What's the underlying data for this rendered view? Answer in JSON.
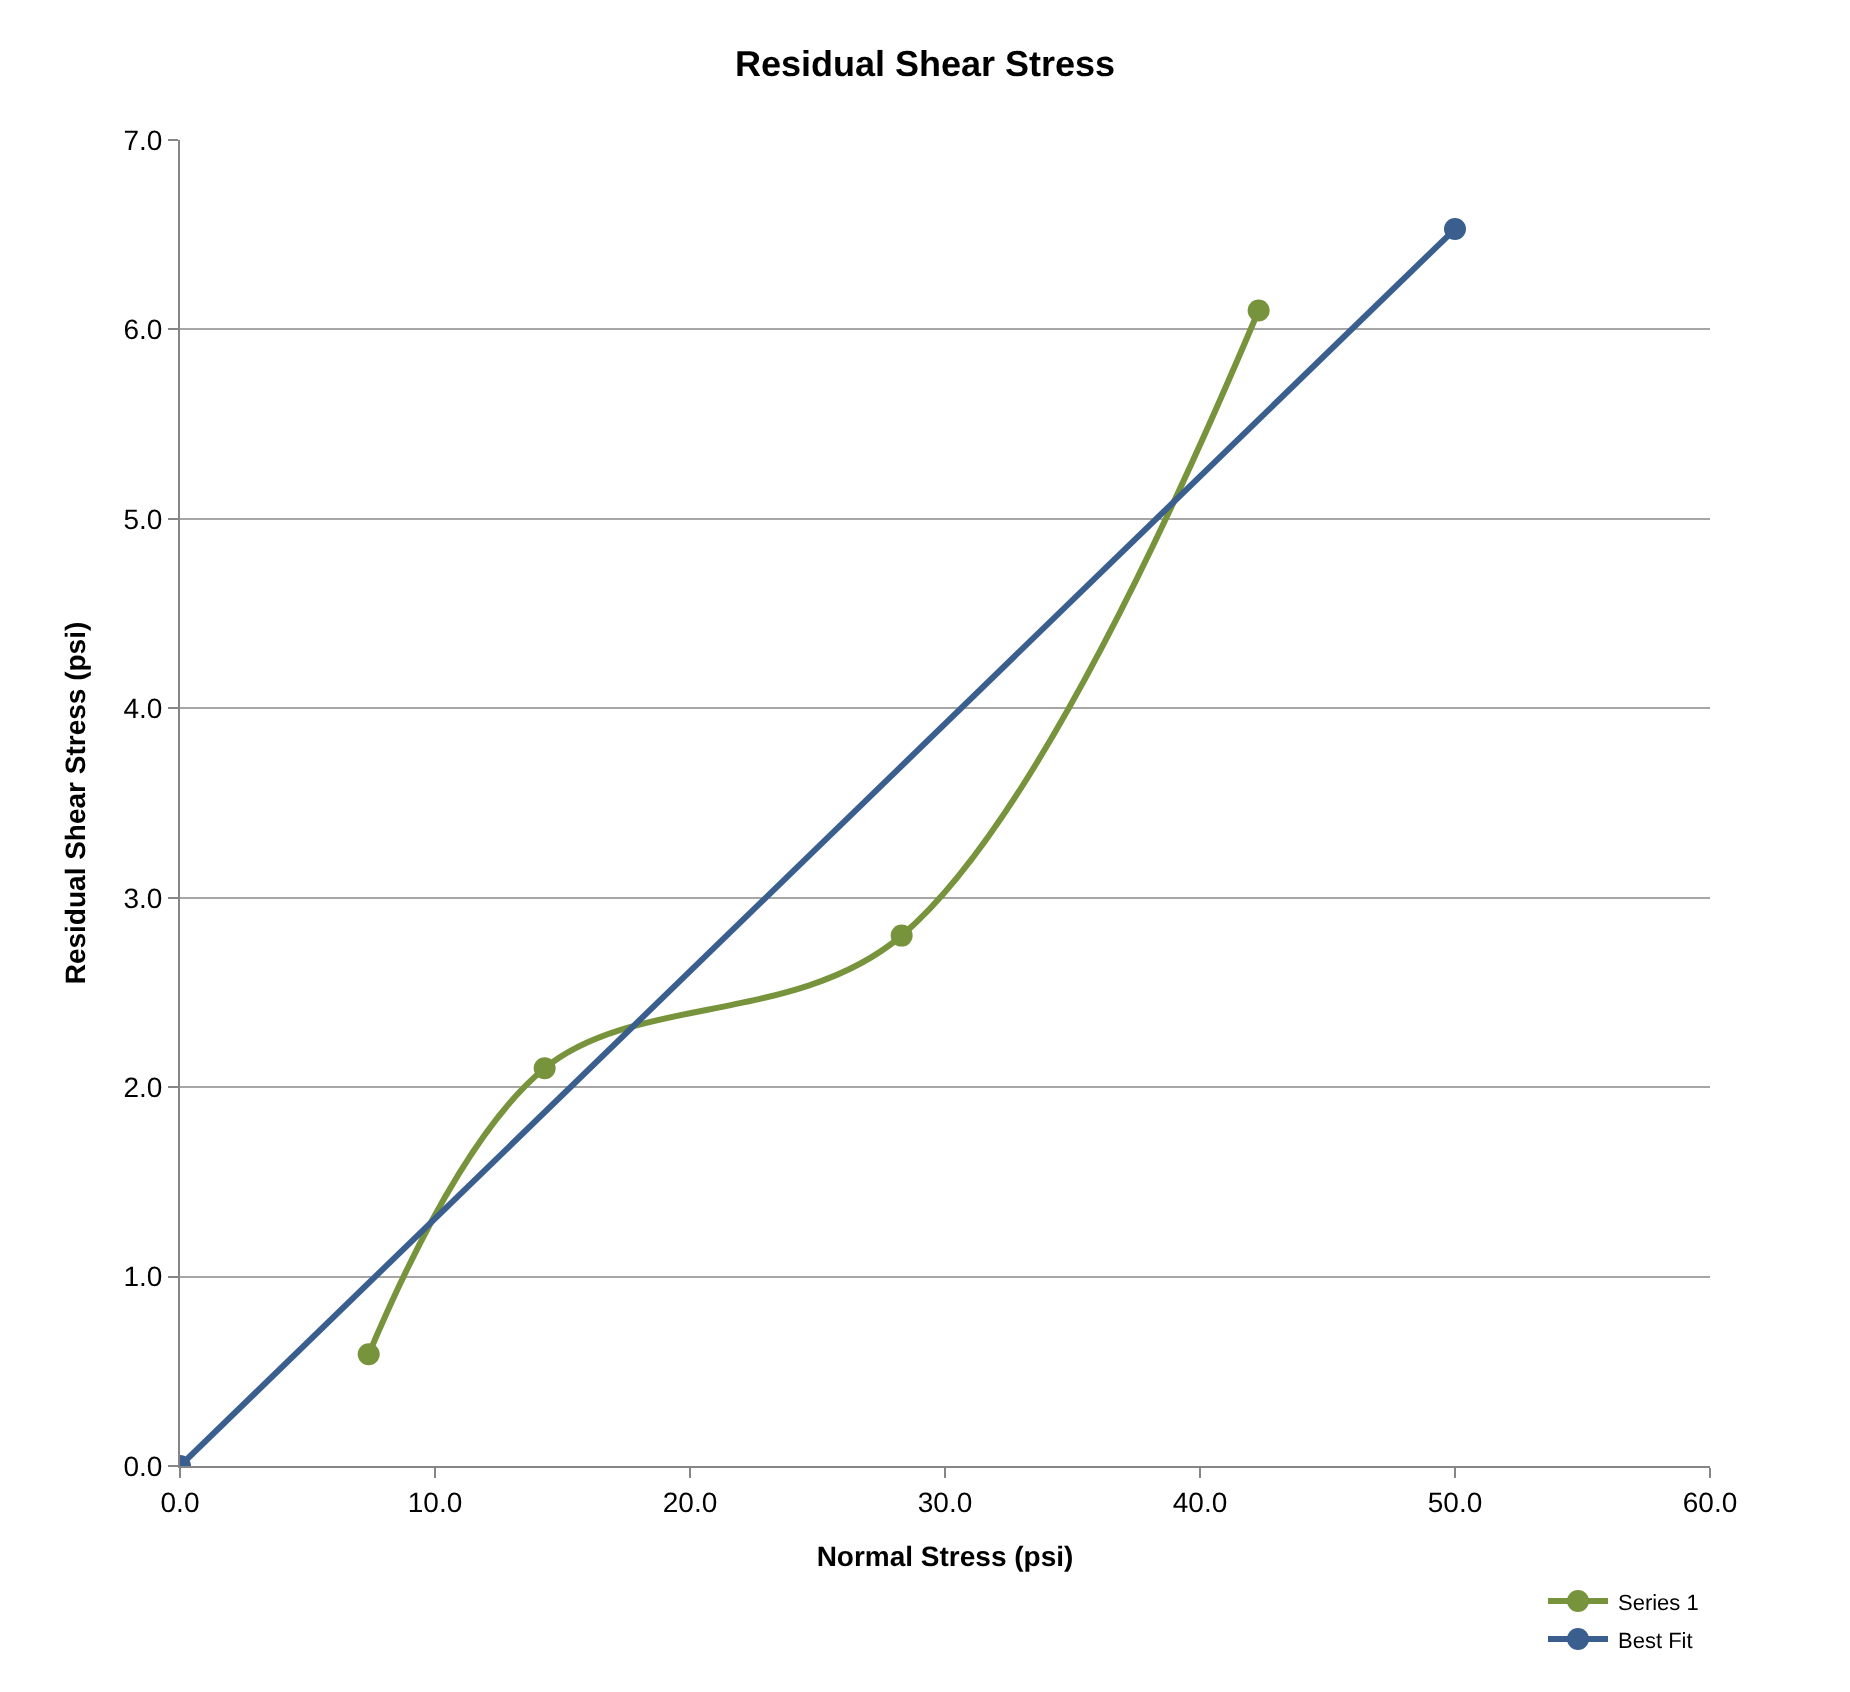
{
  "chart_data": {
    "type": "line",
    "title": "Residual Shear Stress",
    "xlabel": "Normal Stress (psi)",
    "ylabel": "Residual Shear Stress (psi)",
    "xlim": [
      0,
      60
    ],
    "xticks": [
      {
        "value": 0,
        "label": "0.0"
      },
      {
        "value": 10,
        "label": "10.0"
      },
      {
        "value": 20,
        "label": "20.0"
      },
      {
        "value": 30,
        "label": "30.0"
      },
      {
        "value": 40,
        "label": "40.0"
      },
      {
        "value": 50,
        "label": "50.0"
      },
      {
        "value": 60,
        "label": "60.0"
      }
    ],
    "ylim": [
      0,
      7
    ],
    "yticks": [
      {
        "value": 0,
        "label": "0.0"
      },
      {
        "value": 1,
        "label": "1.0"
      },
      {
        "value": 2,
        "label": "2.0"
      },
      {
        "value": 3,
        "label": "3.0"
      },
      {
        "value": 4,
        "label": "4.0"
      },
      {
        "value": 5,
        "label": "5.0"
      },
      {
        "value": 6,
        "label": "6.0"
      },
      {
        "value": 7,
        "label": "7.0"
      }
    ],
    "grid": "y",
    "legend": "bottom right",
    "marker": "circle",
    "line_style": "solid",
    "series": [
      {
        "name": "Series 1",
        "color": "#77933c",
        "x": [
          7.4,
          14.3,
          28.3,
          42.3
        ],
        "values": [
          0.59,
          2.1,
          2.8,
          6.1
        ]
      },
      {
        "name": "Best Fit",
        "color": "#3a5f8f",
        "x": [
          0,
          50
        ],
        "values": [
          0,
          6.53
        ]
      }
    ]
  }
}
